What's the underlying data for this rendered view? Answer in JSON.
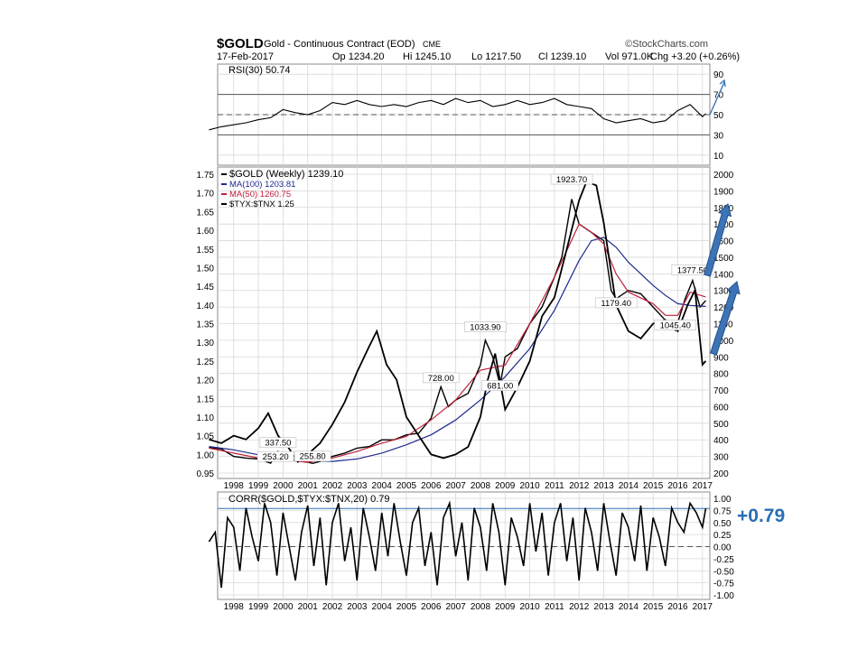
{
  "header": {
    "symbol": "$GOLD",
    "description": "Gold - Continuous Contract (EOD)",
    "exchange": "CME",
    "date": "17-Feb-2017",
    "open": "Op 1234.20",
    "high": "Hi 1245.10",
    "low": "Lo 1217.50",
    "close": "Cl 1239.10",
    "volume": "Vol 971.0K",
    "change": "Chg +3.20 (+0.26%)",
    "source": "©StockCharts.com"
  },
  "callout": "+0.79",
  "colors": {
    "price": "#000000",
    "ma100": "#1f2a8c",
    "ma50": "#c0213a",
    "ratio": "#000000",
    "arrow": "#3d74b8",
    "callout": "#2a6fb5",
    "grid": "#d8d8d8"
  },
  "chart_data": [
    {
      "type": "line",
      "panel": "rsi",
      "legend": "RSI(30) 50.74",
      "ylim": [
        0,
        100
      ],
      "y_ticks": [
        10,
        30,
        50,
        70,
        90
      ],
      "reference_lines": [
        30,
        50,
        70
      ],
      "x": [
        1997.0,
        1997.5,
        1998.0,
        1998.5,
        1999.0,
        1999.5,
        2000.0,
        2000.5,
        2001.0,
        2001.5,
        2002.0,
        2002.5,
        2003.0,
        2003.5,
        2004.0,
        2004.5,
        2005.0,
        2005.5,
        2006.0,
        2006.5,
        2007.0,
        2007.5,
        2008.0,
        2008.5,
        2009.0,
        2009.5,
        2010.0,
        2010.5,
        2011.0,
        2011.5,
        2012.0,
        2012.5,
        2013.0,
        2013.5,
        2014.0,
        2014.5,
        2015.0,
        2015.5,
        2016.0,
        2016.5,
        2017.0,
        2017.13
      ],
      "values": [
        35,
        38,
        40,
        42,
        45,
        47,
        55,
        52,
        50,
        54,
        62,
        60,
        64,
        60,
        58,
        60,
        58,
        62,
        64,
        60,
        66,
        62,
        64,
        58,
        60,
        64,
        60,
        62,
        66,
        60,
        58,
        56,
        46,
        42,
        44,
        46,
        42,
        44,
        54,
        60,
        48,
        51
      ]
    },
    {
      "type": "line",
      "panel": "price",
      "legend": [
        "$GOLD (Weekly) 1239.10",
        "MA(100) 1203.81",
        "MA(50) 1260.75",
        "$TYX:$TNX 1.25"
      ],
      "x_ticks": [
        "1998",
        "1999",
        "2000",
        "2001",
        "2002",
        "2003",
        "2004",
        "2005",
        "2006",
        "2007",
        "2008",
        "2009",
        "2010",
        "2011",
        "2012",
        "2013",
        "2014",
        "2015",
        "2016",
        "2017"
      ],
      "left_axis": {
        "ylim": [
          0.95,
          1.75
        ],
        "ticks": [
          0.95,
          1.0,
          1.05,
          1.1,
          1.15,
          1.2,
          1.25,
          1.3,
          1.35,
          1.4,
          1.45,
          1.5,
          1.55,
          1.6,
          1.65,
          1.7,
          1.75
        ]
      },
      "right_axis": {
        "ylim": [
          200,
          2000
        ],
        "ticks": [
          200,
          300,
          400,
          500,
          600,
          700,
          800,
          900,
          1000,
          1100,
          1200,
          1300,
          1400,
          1500,
          1600,
          1700,
          1800,
          1900,
          2000
        ],
        "tick_labels": [
          "200",
          "300",
          "400",
          "500",
          "600",
          "700",
          "800",
          "900",
          "1000",
          "1100",
          "1200",
          "1300",
          "1400",
          "1500",
          "1600",
          "1700",
          "1800",
          "1900",
          "2000"
        ]
      },
      "annotations": [
        {
          "label": "337.50",
          "x": 1999.8,
          "y": 337.5
        },
        {
          "label": "253.20",
          "x": 1999.7,
          "y": 253.2
        },
        {
          "label": "255.80",
          "x": 2001.2,
          "y": 255.8
        },
        {
          "label": "728.00",
          "x": 2006.4,
          "y": 728.0
        },
        {
          "label": "1033.90",
          "x": 2008.2,
          "y": 1033.9
        },
        {
          "label": "681.00",
          "x": 2008.8,
          "y": 681.0
        },
        {
          "label": "1923.70",
          "x": 2011.7,
          "y": 1923.7
        },
        {
          "label": "1179.40",
          "x": 2013.5,
          "y": 1179.4
        },
        {
          "label": "1045.40",
          "x": 2015.9,
          "y": 1045.4
        },
        {
          "label": "1377.50",
          "x": 2016.6,
          "y": 1377.5
        }
      ],
      "series": [
        {
          "name": "$GOLD (Weekly) 1239.10",
          "axis": "right",
          "x": [
            1997.0,
            1997.5,
            1998.0,
            1998.5,
            1999.0,
            1999.5,
            1999.8,
            2000.0,
            2000.5,
            2001.0,
            2001.2,
            2001.5,
            2002.0,
            2002.5,
            2003.0,
            2003.5,
            2004.0,
            2004.5,
            2005.0,
            2005.5,
            2006.0,
            2006.4,
            2006.7,
            2007.0,
            2007.5,
            2008.0,
            2008.2,
            2008.5,
            2008.8,
            2009.0,
            2009.5,
            2010.0,
            2010.5,
            2011.0,
            2011.3,
            2011.7,
            2012.0,
            2012.5,
            2013.0,
            2013.3,
            2013.5,
            2014.0,
            2014.5,
            2015.0,
            2015.5,
            2015.9,
            2016.3,
            2016.6,
            2016.9,
            2017.13
          ],
          "values": [
            355,
            345,
            300,
            290,
            285,
            260,
            330,
            290,
            275,
            265,
            258,
            270,
            300,
            320,
            350,
            360,
            400,
            400,
            430,
            440,
            530,
            720,
            600,
            640,
            680,
            850,
            1000,
            900,
            730,
            900,
            950,
            1100,
            1200,
            1380,
            1500,
            1850,
            1700,
            1650,
            1600,
            1300,
            1250,
            1300,
            1280,
            1200,
            1120,
            1060,
            1250,
            1360,
            1200,
            1239.1
          ]
        },
        {
          "name": "MA(100) 1203.81",
          "axis": "right",
          "x": [
            1997.0,
            1998.0,
            1999.0,
            2000.0,
            2001.0,
            2002.0,
            2003.0,
            2004.0,
            2005.0,
            2006.0,
            2007.0,
            2008.0,
            2009.0,
            2010.0,
            2011.0,
            2012.0,
            2012.5,
            2013.0,
            2013.5,
            2014.0,
            2014.5,
            2015.0,
            2015.5,
            2016.0,
            2016.5,
            2017.13
          ],
          "values": [
            360,
            340,
            310,
            290,
            275,
            270,
            285,
            320,
            370,
            430,
            520,
            640,
            780,
            950,
            1180,
            1480,
            1600,
            1620,
            1560,
            1470,
            1400,
            1330,
            1270,
            1220,
            1210,
            1203.81
          ]
        },
        {
          "name": "MA(50) 1260.75",
          "axis": "right",
          "x": [
            1997.0,
            1998.0,
            1999.0,
            2000.0,
            2001.0,
            2002.0,
            2003.0,
            2004.0,
            2005.0,
            2006.0,
            2007.0,
            2008.0,
            2009.0,
            2010.0,
            2011.0,
            2012.0,
            2012.5,
            2013.0,
            2013.5,
            2014.0,
            2015.0,
            2015.5,
            2016.0,
            2016.5,
            2017.13
          ],
          "values": [
            350,
            320,
            290,
            280,
            265,
            290,
            330,
            380,
            420,
            520,
            640,
            820,
            850,
            1100,
            1380,
            1700,
            1650,
            1580,
            1400,
            1290,
            1220,
            1150,
            1150,
            1290,
            1260.75
          ]
        },
        {
          "name": "$TYX:$TNX 1.25",
          "axis": "left",
          "x": [
            1997.0,
            1997.5,
            1998.0,
            1998.5,
            1999.0,
            1999.4,
            1999.8,
            2000.2,
            2000.6,
            2001.0,
            2001.5,
            2002.0,
            2002.5,
            2003.0,
            2003.5,
            2003.8,
            2004.2,
            2004.6,
            2005.0,
            2005.5,
            2006.0,
            2006.5,
            2007.0,
            2007.5,
            2008.0,
            2008.3,
            2008.6,
            2009.0,
            2009.5,
            2010.0,
            2010.5,
            2011.0,
            2011.5,
            2012.0,
            2012.3,
            2012.7,
            2013.0,
            2013.5,
            2014.0,
            2014.5,
            2015.0,
            2015.5,
            2016.0,
            2016.4,
            2016.7,
            2017.0,
            2017.13
          ],
          "values": [
            1.04,
            1.03,
            1.05,
            1.04,
            1.07,
            1.11,
            1.05,
            1.02,
            0.98,
            1.0,
            1.03,
            1.08,
            1.14,
            1.22,
            1.29,
            1.33,
            1.24,
            1.2,
            1.1,
            1.05,
            1.0,
            0.99,
            1.0,
            1.02,
            1.1,
            1.2,
            1.27,
            1.12,
            1.18,
            1.25,
            1.37,
            1.42,
            1.55,
            1.68,
            1.73,
            1.72,
            1.62,
            1.4,
            1.33,
            1.31,
            1.35,
            1.36,
            1.33,
            1.4,
            1.44,
            1.24,
            1.25
          ]
        }
      ]
    },
    {
      "type": "line",
      "panel": "correlation",
      "legend": "CORR($GOLD,$TYX:$TNX,20) 0.79",
      "ylim": [
        -1.0,
        1.0
      ],
      "y_ticks": [
        -1.0,
        -0.75,
        -0.5,
        -0.25,
        0.0,
        0.25,
        0.5,
        0.75,
        1.0
      ],
      "y_tick_labels": [
        "-1.00",
        "-0.75",
        "-0.50",
        "-0.25",
        "0.00",
        "0.25",
        "0.50",
        "0.75",
        "1.00"
      ],
      "reference_lines": [
        0.0,
        0.79
      ],
      "x_ticks": [
        "1998",
        "1999",
        "2000",
        "2001",
        "2002",
        "2003",
        "2004",
        "2005",
        "2006",
        "2007",
        "2008",
        "2009",
        "2010",
        "2011",
        "2012",
        "2013",
        "2014",
        "2015",
        "2016",
        "2017"
      ],
      "x": [
        1997.0,
        1997.25,
        1997.5,
        1997.75,
        1998.0,
        1998.25,
        1998.5,
        1998.75,
        1999.0,
        1999.25,
        1999.5,
        1999.75,
        2000.0,
        2000.25,
        2000.5,
        2000.75,
        2001.0,
        2001.25,
        2001.5,
        2001.75,
        2002.0,
        2002.25,
        2002.5,
        2002.75,
        2003.0,
        2003.25,
        2003.5,
        2003.75,
        2004.0,
        2004.25,
        2004.5,
        2004.75,
        2005.0,
        2005.25,
        2005.5,
        2005.75,
        2006.0,
        2006.25,
        2006.5,
        2006.75,
        2007.0,
        2007.25,
        2007.5,
        2007.75,
        2008.0,
        2008.25,
        2008.5,
        2008.75,
        2009.0,
        2009.25,
        2009.5,
        2009.75,
        2010.0,
        2010.25,
        2010.5,
        2010.75,
        2011.0,
        2011.25,
        2011.5,
        2011.75,
        2012.0,
        2012.25,
        2012.5,
        2012.75,
        2013.0,
        2013.25,
        2013.5,
        2013.75,
        2014.0,
        2014.25,
        2014.5,
        2014.75,
        2015.0,
        2015.25,
        2015.5,
        2015.75,
        2016.0,
        2016.25,
        2016.5,
        2016.75,
        2017.0,
        2017.13
      ],
      "values": [
        0.1,
        0.3,
        -0.85,
        0.6,
        0.4,
        -0.5,
        0.8,
        0.2,
        -0.3,
        0.9,
        0.5,
        -0.6,
        0.7,
        0.0,
        -0.7,
        0.3,
        0.85,
        -0.4,
        0.6,
        -0.8,
        0.5,
        0.9,
        -0.3,
        0.4,
        -0.7,
        0.8,
        0.2,
        -0.5,
        0.7,
        -0.2,
        0.9,
        0.1,
        -0.6,
        0.5,
        0.8,
        -0.4,
        0.3,
        -0.8,
        0.6,
        0.9,
        -0.2,
        0.5,
        -0.7,
        0.8,
        0.4,
        -0.5,
        0.9,
        0.3,
        -0.8,
        0.6,
        0.2,
        -0.4,
        0.9,
        -0.1,
        0.7,
        -0.6,
        0.5,
        0.9,
        -0.3,
        0.6,
        -0.7,
        0.8,
        0.3,
        -0.5,
        0.9,
        0.1,
        -0.6,
        0.7,
        0.4,
        -0.3,
        0.85,
        -0.5,
        0.6,
        0.2,
        -0.4,
        0.8,
        0.5,
        0.3,
        0.9,
        0.7,
        0.4,
        0.79
      ]
    }
  ]
}
